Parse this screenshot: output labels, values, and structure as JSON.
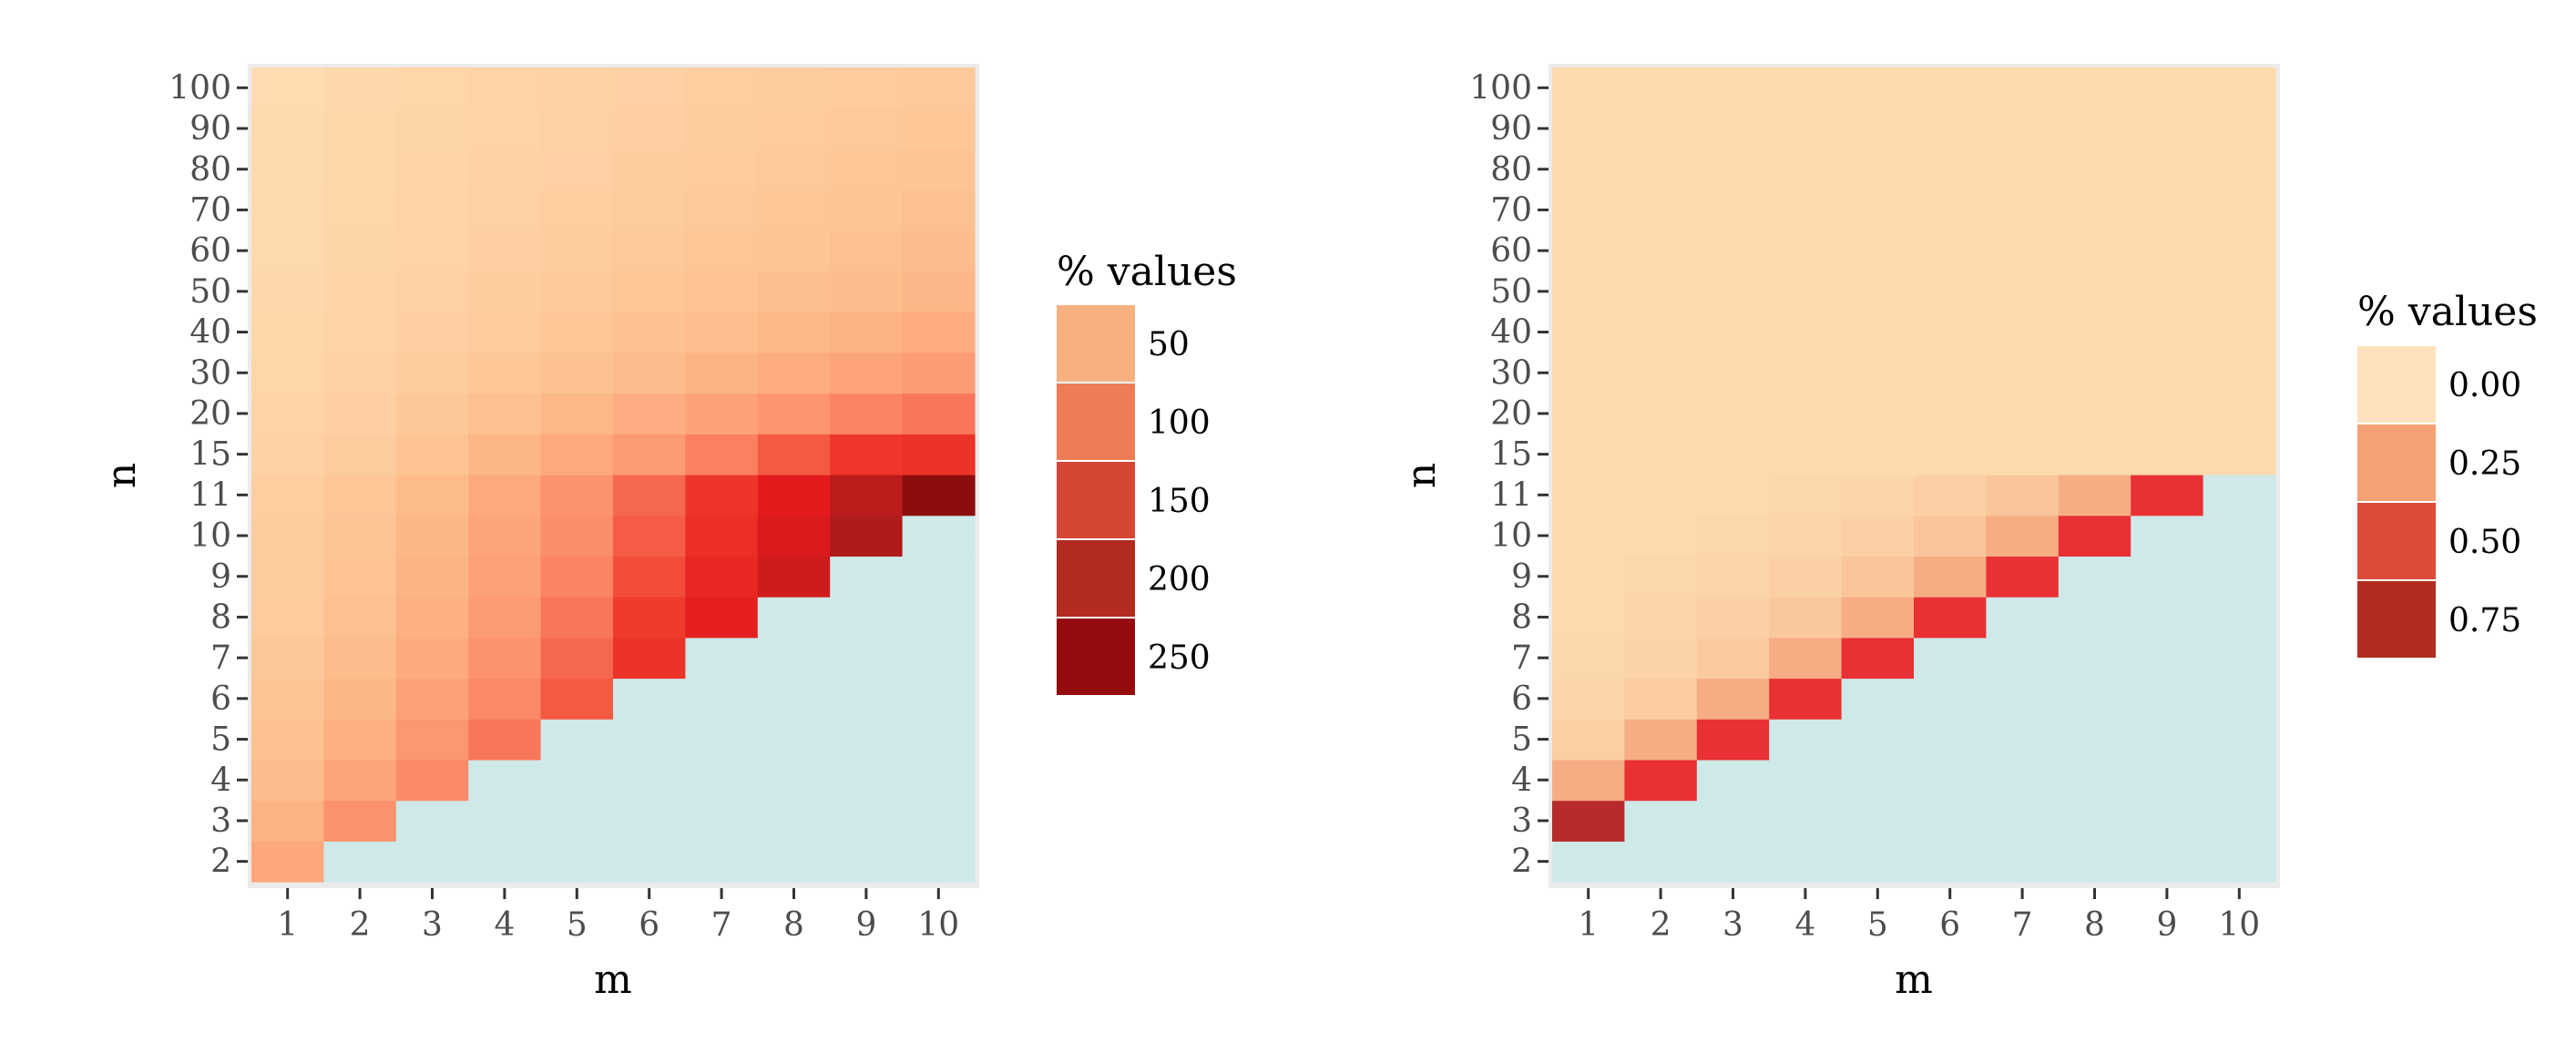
{
  "chart_data": [
    {
      "type": "heatmap",
      "title": "",
      "xlabel": "m",
      "ylabel": "n",
      "x": [
        "1",
        "2",
        "3",
        "4",
        "5",
        "6",
        "7",
        "8",
        "9",
        "10"
      ],
      "y": [
        "2",
        "3",
        "4",
        "5",
        "6",
        "7",
        "8",
        "9",
        "10",
        "11",
        "15",
        "20",
        "30",
        "40",
        "50",
        "60",
        "70",
        "80",
        "90",
        "100"
      ],
      "cell_rule": "cells present where numeric n > m; remaining cells are empty background",
      "z": [
        [
          60,
          null,
          null,
          null,
          null,
          null,
          null,
          null,
          null,
          null
        ],
        [
          48,
          80,
          null,
          null,
          null,
          null,
          null,
          null,
          null,
          null
        ],
        [
          40,
          62,
          85,
          null,
          null,
          null,
          null,
          null,
          null,
          null
        ],
        [
          34,
          52,
          74,
          95,
          null,
          null,
          null,
          null,
          null,
          null
        ],
        [
          30,
          45,
          64,
          86,
          110,
          null,
          null,
          null,
          null,
          null
        ],
        [
          27,
          40,
          57,
          78,
          102,
          135,
          null,
          null,
          null,
          null
        ],
        [
          24,
          36,
          52,
          71,
          95,
          125,
          160,
          null,
          null,
          null
        ],
        [
          22,
          33,
          48,
          66,
          88,
          116,
          150,
          185,
          null,
          null
        ],
        [
          21,
          31,
          45,
          62,
          83,
          108,
          140,
          175,
          215,
          null
        ],
        [
          20,
          29,
          42,
          58,
          78,
          102,
          132,
          165,
          205,
          250
        ],
        [
          16,
          23,
          33,
          45,
          58,
          72,
          90,
          110,
          130,
          135
        ],
        [
          13,
          19,
          27,
          35,
          44,
          54,
          64,
          76,
          88,
          95
        ],
        [
          11,
          16,
          22,
          28,
          34,
          41,
          48,
          55,
          63,
          70
        ],
        [
          10,
          14,
          19,
          24,
          29,
          34,
          39,
          44,
          50,
          56
        ],
        [
          9,
          13,
          17,
          21,
          25,
          29,
          33,
          37,
          41,
          46
        ],
        [
          8,
          12,
          15,
          19,
          22,
          26,
          29,
          32,
          36,
          40
        ],
        [
          8,
          11,
          14,
          17,
          20,
          23,
          26,
          29,
          32,
          35
        ],
        [
          7,
          10,
          13,
          16,
          18,
          21,
          24,
          26,
          29,
          31
        ],
        [
          7,
          10,
          12,
          15,
          17,
          19,
          22,
          24,
          26,
          28
        ],
        [
          6,
          9,
          11,
          14,
          16,
          18,
          20,
          22,
          24,
          26
        ]
      ],
      "zlim": [
        0,
        250
      ],
      "legend": {
        "title": "% values",
        "labels": [
          "50",
          "100",
          "150",
          "200",
          "250"
        ],
        "values": [
          50,
          100,
          150,
          200,
          250
        ],
        "placement": "right"
      },
      "colors": {
        "low": "#fee0b6",
        "ramp": [
          "#fee0b6",
          "#fdbb8a",
          "#fc8d6a",
          "#ef3b2c",
          "#e31a1c",
          "#b71c1c",
          "#8b0d0d"
        ],
        "missing": "#cfe8e8",
        "legend_keys": [
          "#f9b081",
          "#ee7d55",
          "#d54735",
          "#b32a20",
          "#960c0e"
        ]
      }
    },
    {
      "type": "heatmap",
      "title": "",
      "xlabel": "m",
      "ylabel": "n",
      "x": [
        "1",
        "2",
        "3",
        "4",
        "5",
        "6",
        "7",
        "8",
        "9",
        "10"
      ],
      "y": [
        "2",
        "3",
        "4",
        "5",
        "6",
        "7",
        "8",
        "9",
        "10",
        "11",
        "15",
        "20",
        "30",
        "40",
        "50",
        "60",
        "70",
        "80",
        "90",
        "100"
      ],
      "cell_rule": "cells present where numeric n >= m + 2; remaining cells are empty background",
      "z": [
        [
          null,
          null,
          null,
          null,
          null,
          null,
          null,
          null,
          null,
          null
        ],
        [
          0.8,
          null,
          null,
          null,
          null,
          null,
          null,
          null,
          null,
          null
        ],
        [
          0.2,
          0.6,
          null,
          null,
          null,
          null,
          null,
          null,
          null,
          null
        ],
        [
          0.05,
          0.2,
          0.6,
          null,
          null,
          null,
          null,
          null,
          null,
          null
        ],
        [
          0.02,
          0.06,
          0.2,
          0.6,
          null,
          null,
          null,
          null,
          null,
          null
        ],
        [
          0.01,
          0.03,
          0.07,
          0.2,
          0.6,
          null,
          null,
          null,
          null,
          null
        ],
        [
          0.0,
          0.02,
          0.04,
          0.08,
          0.2,
          0.6,
          null,
          null,
          null,
          null
        ],
        [
          0.0,
          0.01,
          0.02,
          0.04,
          0.09,
          0.2,
          0.6,
          null,
          null,
          null
        ],
        [
          0.0,
          0.0,
          0.01,
          0.02,
          0.04,
          0.09,
          0.2,
          0.6,
          null,
          null
        ],
        [
          0.0,
          0.0,
          0.0,
          0.01,
          0.02,
          0.04,
          0.09,
          0.2,
          0.6,
          null
        ],
        [
          0.0,
          0.0,
          0.0,
          0.0,
          0.0,
          0.0,
          0.0,
          0.0,
          0.0,
          0.0
        ],
        [
          0.0,
          0.0,
          0.0,
          0.0,
          0.0,
          0.0,
          0.0,
          0.0,
          0.0,
          0.0
        ],
        [
          0.0,
          0.0,
          0.0,
          0.0,
          0.0,
          0.0,
          0.0,
          0.0,
          0.0,
          0.0
        ],
        [
          0.0,
          0.0,
          0.0,
          0.0,
          0.0,
          0.0,
          0.0,
          0.0,
          0.0,
          0.0
        ],
        [
          0.0,
          0.0,
          0.0,
          0.0,
          0.0,
          0.0,
          0.0,
          0.0,
          0.0,
          0.0
        ],
        [
          0.0,
          0.0,
          0.0,
          0.0,
          0.0,
          0.0,
          0.0,
          0.0,
          0.0,
          0.0
        ],
        [
          0.0,
          0.0,
          0.0,
          0.0,
          0.0,
          0.0,
          0.0,
          0.0,
          0.0,
          0.0
        ],
        [
          0.0,
          0.0,
          0.0,
          0.0,
          0.0,
          0.0,
          0.0,
          0.0,
          0.0,
          0.0
        ],
        [
          0.0,
          0.0,
          0.0,
          0.0,
          0.0,
          0.0,
          0.0,
          0.0,
          0.0,
          0.0
        ],
        [
          0.0,
          0.0,
          0.0,
          0.0,
          0.0,
          0.0,
          0.0,
          0.0,
          0.0,
          0.0
        ]
      ],
      "zlim": [
        0,
        0.85
      ],
      "legend": {
        "title": "% values",
        "labels": [
          "0.00",
          "0.25",
          "0.50",
          "0.75"
        ],
        "values": [
          0.0,
          0.25,
          0.5,
          0.75
        ],
        "placement": "right"
      },
      "colors": {
        "low": "#fdd9ae",
        "ramp": [
          "#fdd9ae",
          "#f7b48a",
          "#f28a6a",
          "#ef3b3b",
          "#e3262f",
          "#a52a2a"
        ],
        "missing": "#cfe8e8",
        "legend_keys": [
          "#fde2bd",
          "#f4a174",
          "#dd4c39",
          "#b02c21"
        ]
      }
    }
  ]
}
